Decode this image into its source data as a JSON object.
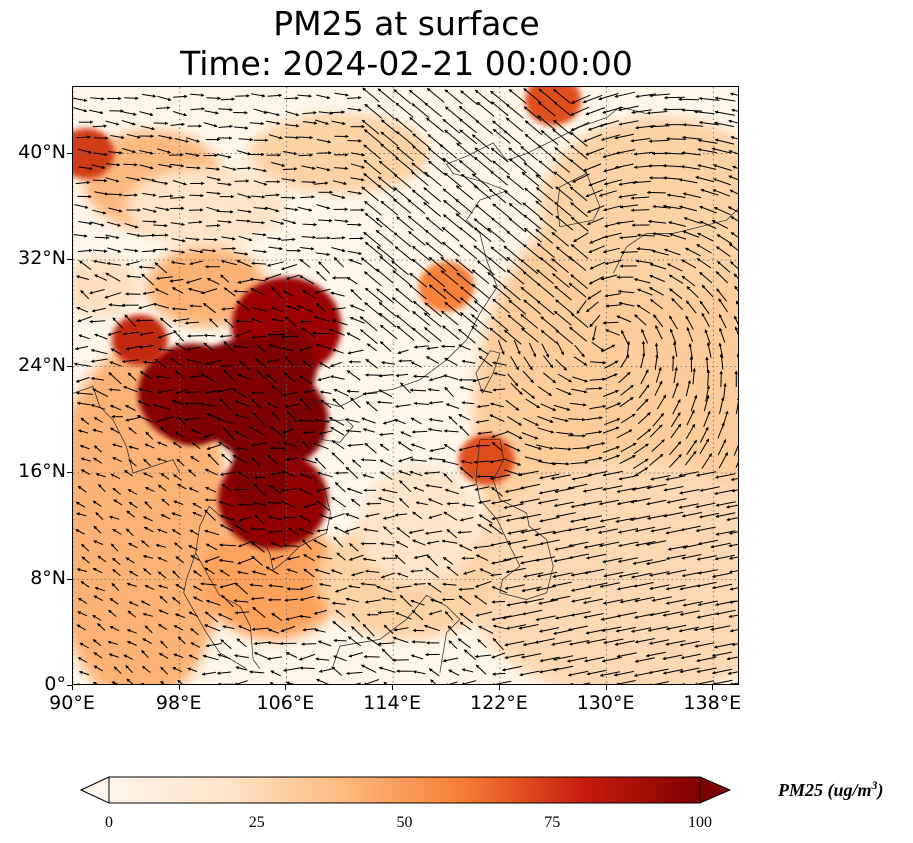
{
  "title": {
    "line1": "PM25 at surface",
    "line2": "Time: 2024-02-21 00:00:00"
  },
  "map": {
    "lon_range": [
      90,
      140
    ],
    "lat_range": [
      0,
      45
    ],
    "lat_ticks": [
      {
        "value": 40,
        "label": "40°N"
      },
      {
        "value": 32,
        "label": "32°N"
      },
      {
        "value": 24,
        "label": "24°N"
      },
      {
        "value": 16,
        "label": "16°N"
      },
      {
        "value": 8,
        "label": "8°N"
      },
      {
        "value": 0,
        "label": "0°"
      }
    ],
    "lon_ticks": [
      {
        "value": 90,
        "label": "90°E"
      },
      {
        "value": 98,
        "label": "98°E"
      },
      {
        "value": 106,
        "label": "106°E"
      },
      {
        "value": 114,
        "label": "114°E"
      },
      {
        "value": 122,
        "label": "122°E"
      },
      {
        "value": 130,
        "label": "130°E"
      },
      {
        "value": 138,
        "label": "138°E"
      }
    ],
    "gridlines": "dotted",
    "field": "PM25",
    "overlay": "wind-vectors"
  },
  "colorbar": {
    "title": "PM25 (ug/m",
    "title_sup": "3",
    "title_close": ")",
    "min": 0,
    "max": 100,
    "extend": "both",
    "tick_labels": [
      {
        "value": 0,
        "label": "0"
      },
      {
        "value": 25,
        "label": "25"
      },
      {
        "value": 50,
        "label": "50"
      },
      {
        "value": 75,
        "label": "75"
      },
      {
        "value": 100,
        "label": "100"
      }
    ],
    "colors": [
      "#fff5eb",
      "#fdd2a5",
      "#fd9243",
      "#df4f1a",
      "#a70403",
      "#7f0000"
    ]
  },
  "chart_data": {
    "type": "heatmap",
    "title": "PM25 at surface\nTime: 2024-02-21 00:00:00",
    "xlabel": "",
    "ylabel": "",
    "xlim": [
      90,
      140
    ],
    "ylim": [
      0,
      45
    ],
    "grid": true,
    "legend": "colorbar-bottom",
    "hotspots": [
      {
        "lon": 105,
        "lat": 20,
        "pm25": 100
      },
      {
        "lon": 99,
        "lat": 22,
        "pm25": 95
      },
      {
        "lon": 105,
        "lat": 14,
        "pm25": 90
      },
      {
        "lon": 106,
        "lat": 27,
        "pm25": 85
      },
      {
        "lon": 95,
        "lat": 26,
        "pm25": 70
      },
      {
        "lon": 91,
        "lat": 40,
        "pm25": 65
      },
      {
        "lon": 126,
        "lat": 44,
        "pm25": 60
      },
      {
        "lon": 121,
        "lat": 17,
        "pm25": 60
      },
      {
        "lon": 118,
        "lat": 30,
        "pm25": 45
      }
    ]
  }
}
